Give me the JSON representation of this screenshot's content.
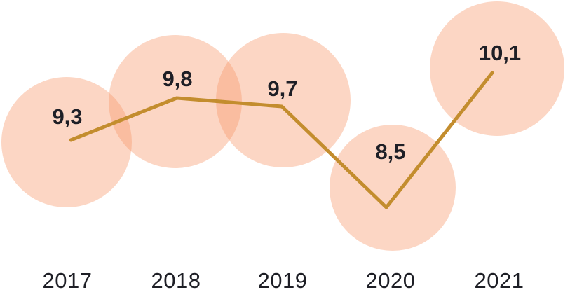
{
  "chart_data": {
    "type": "line",
    "title": "",
    "xlabel": "",
    "ylabel": "",
    "categories": [
      "2017",
      "2018",
      "2019",
      "2020",
      "2021"
    ],
    "values": [
      9.3,
      9.8,
      9.7,
      8.5,
      10.1
    ],
    "value_labels": [
      "9,3",
      "9,8",
      "9,7",
      "8,5",
      "10,1"
    ],
    "decimal_separator": ",",
    "axes": "hidden",
    "grid": false,
    "legend": false,
    "marker_style": "large-bubble-circles",
    "ylim_implied": [
      8.0,
      10.5
    ],
    "colors": {
      "background": "#FFFFFF",
      "bubble_fill": "#F7986C",
      "bubble_opacity": "0.4",
      "line": "#C38D2E",
      "text": "#1E1F26"
    }
  }
}
